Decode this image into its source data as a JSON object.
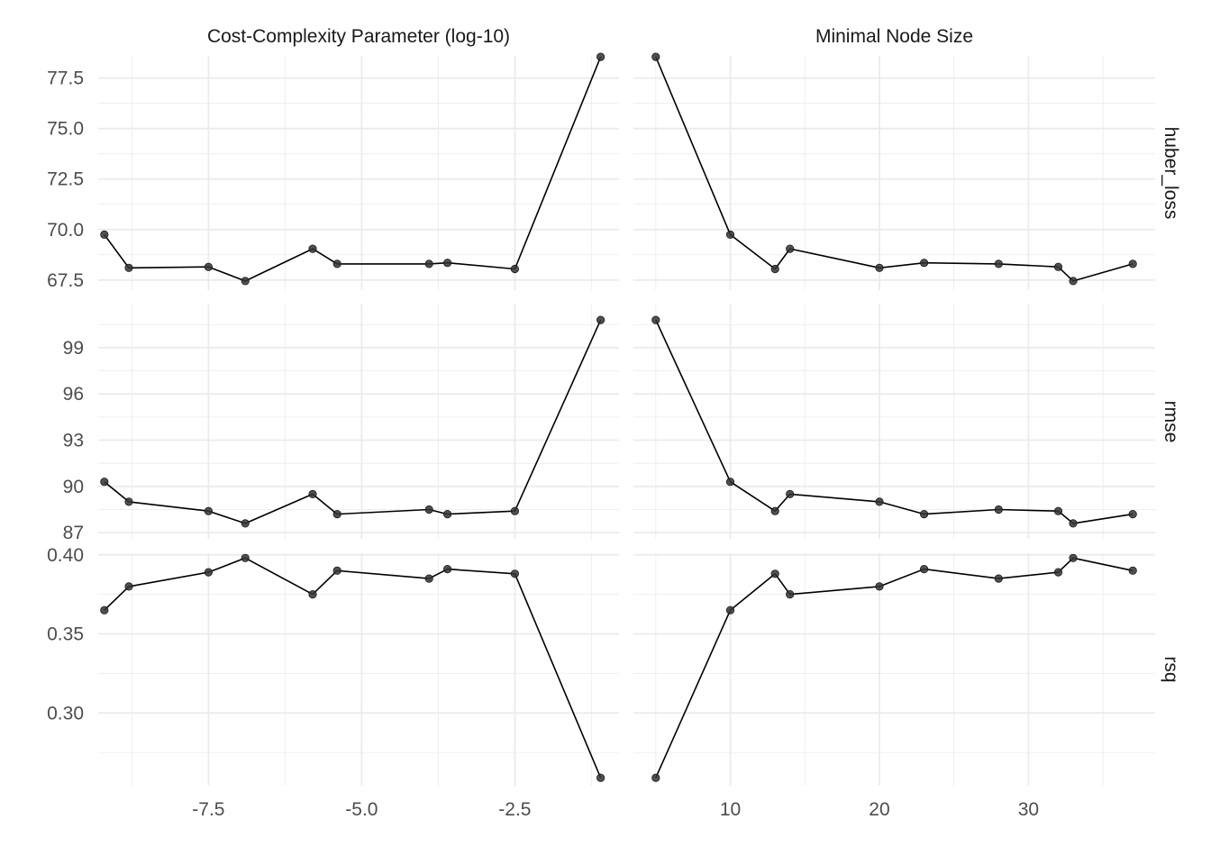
{
  "chart_data": {
    "type": "line",
    "layout": "facet grid: metrics as rows, tuning parameters as columns",
    "grid": true,
    "columns": [
      {
        "strip": "Cost-Complexity Parameter (log-10)",
        "xlim": [
          -9.3,
          -0.8
        ],
        "xticks": [
          -7.5,
          -5.0,
          -2.5
        ],
        "xtick_labels": [
          "-7.5",
          "-5.0",
          "-2.5"
        ],
        "x": [
          -9.2,
          -8.8,
          -7.5,
          -6.9,
          -5.8,
          -5.4,
          -3.9,
          -3.6,
          -2.5,
          -1.1
        ]
      },
      {
        "strip": "Minimal Node Size",
        "xlim": [
          3.5,
          38.5
        ],
        "xticks": [
          10,
          20,
          30
        ],
        "xtick_labels": [
          "10",
          "20",
          "30"
        ],
        "x": [
          5,
          10,
          13,
          14,
          20,
          23,
          28,
          32,
          33,
          37
        ]
      }
    ],
    "rows": [
      {
        "strip": "huber_loss",
        "ylim": [
          67.0,
          78.6
        ],
        "yticks": [
          67.5,
          70.0,
          72.5,
          75.0,
          77.5
        ],
        "ytick_labels": [
          "67.5",
          "70.0",
          "72.5",
          "75.0",
          "77.5"
        ],
        "series": [
          {
            "y": [
              69.75,
              68.1,
              68.15,
              67.45,
              69.05,
              68.3,
              68.3,
              68.35,
              68.05,
              78.55
            ]
          },
          {
            "y": [
              78.55,
              69.75,
              68.05,
              69.05,
              68.1,
              68.35,
              68.3,
              68.15,
              67.45,
              68.3
            ]
          }
        ]
      },
      {
        "strip": "rmse",
        "ylim": [
          86.6,
          101.8
        ],
        "yticks": [
          87,
          90,
          93,
          96,
          99
        ],
        "ytick_labels": [
          "87",
          "90",
          "93",
          "96",
          "99"
        ],
        "series": [
          {
            "y": [
              90.3,
              89.0,
              88.4,
              87.6,
              89.5,
              88.2,
              88.5,
              88.2,
              88.4,
              100.8
            ]
          },
          {
            "y": [
              100.8,
              90.3,
              88.4,
              89.5,
              89.0,
              88.2,
              88.5,
              88.4,
              87.6,
              88.2
            ]
          }
        ]
      },
      {
        "strip": "rsq",
        "ylim": [
          0.254,
          0.401
        ],
        "yticks": [
          0.3,
          0.35,
          0.4
        ],
        "ytick_labels": [
          "0.30",
          "0.35",
          "0.40"
        ],
        "series": [
          {
            "y": [
              0.365,
              0.38,
              0.389,
              0.398,
              0.375,
              0.39,
              0.385,
              0.391,
              0.388,
              0.259
            ]
          },
          {
            "y": [
              0.259,
              0.365,
              0.388,
              0.375,
              0.38,
              0.391,
              0.385,
              0.389,
              0.398,
              0.39
            ]
          }
        ]
      }
    ],
    "colors": {
      "line": "#000000",
      "point": "#333333",
      "grid": "#ebebeb",
      "text": "#4d4d4d"
    }
  }
}
